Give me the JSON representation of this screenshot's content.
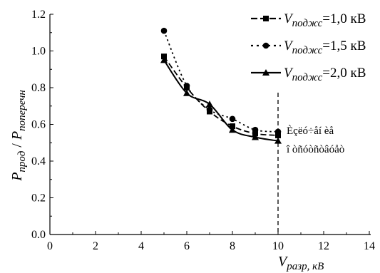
{
  "chart_data": {
    "type": "line",
    "xlabel": "V",
    "xlabel_sub": "разр",
    "xlabel_unit": ", кВ",
    "ylabel_num": "P",
    "ylabel_num_sub": "прод",
    "ylabel_sep": " / ",
    "ylabel_den": "P",
    "ylabel_den_sub": "поперечн",
    "xlim": [
      0,
      14
    ],
    "ylim": [
      0.0,
      1.2
    ],
    "xticks": [
      "0",
      "2",
      "4",
      "6",
      "8",
      "10",
      "12",
      "14"
    ],
    "yticks": [
      "0.0",
      "0.2",
      "0.4",
      "0.6",
      "0.8",
      "1.0",
      "1.2"
    ],
    "grid": false,
    "legend_position": "top-right",
    "x": [
      5,
      6,
      7,
      8,
      9,
      10
    ],
    "series": [
      {
        "name_var": "V",
        "name_sub": "поджс",
        "name_val": "=1,0 кВ",
        "marker": "square",
        "dash": "long-dash",
        "values": [
          0.97,
          0.8,
          0.67,
          0.59,
          0.55,
          0.54
        ]
      },
      {
        "name_var": "V",
        "name_sub": "поджс",
        "name_val": "=1,5 кВ",
        "marker": "circle",
        "dash": "dot",
        "values": [
          1.11,
          0.81,
          0.68,
          0.63,
          0.57,
          0.56
        ]
      },
      {
        "name_var": "V",
        "name_sub": "поджс",
        "name_val": "=2,0 кВ",
        "marker": "triangle",
        "dash": "solid",
        "values": [
          0.95,
          0.77,
          0.71,
          0.57,
          0.53,
          0.51
        ]
      }
    ],
    "vline_x": 10,
    "annotation_line1": "Èçëó÷åí èå",
    "annotation_line2": "î òñóòñòâóåò"
  }
}
